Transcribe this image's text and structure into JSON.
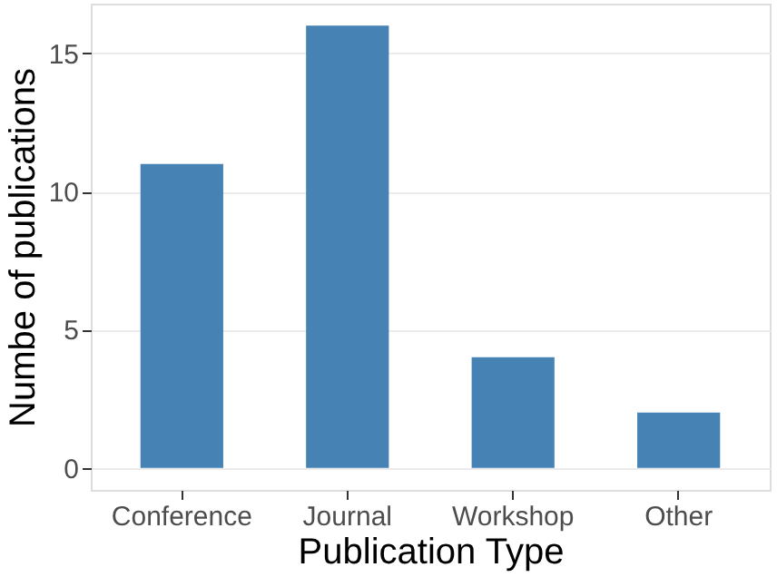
{
  "chart_data": {
    "type": "bar",
    "xlabel": "Publication Type",
    "ylabel": "Numbe of publications",
    "categories": [
      "Conference",
      "Journal",
      "Workshop",
      "Other"
    ],
    "values": [
      11,
      16,
      4,
      2
    ],
    "color": "#4682b4",
    "ylim": [
      -0.8,
      16.8
    ],
    "yticks": [
      0,
      5,
      10,
      15
    ],
    "grid": "y"
  }
}
